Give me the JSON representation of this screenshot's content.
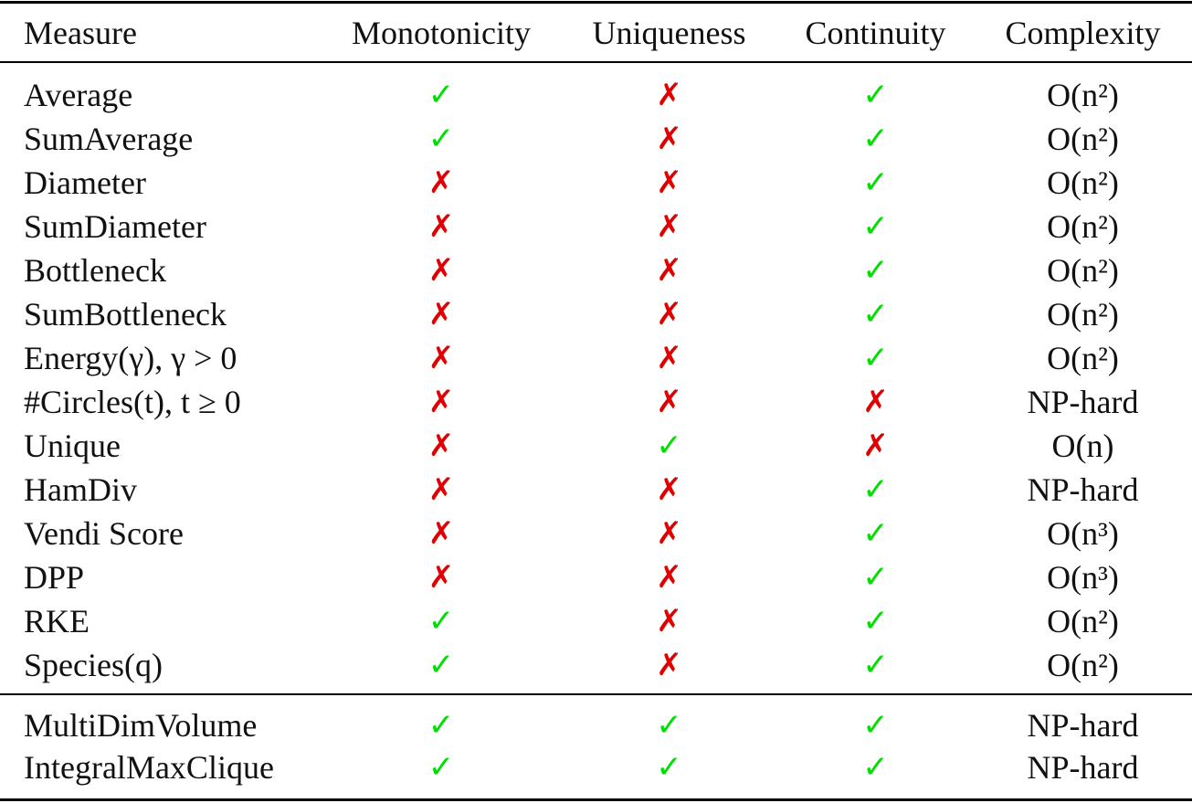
{
  "header": {
    "measure": "Measure",
    "monotonicity": "Monotonicity",
    "uniqueness": "Uniqueness",
    "continuity": "Continuity",
    "complexity": "Complexity"
  },
  "colors": {
    "check": "#00e000",
    "cross": "#e00000"
  },
  "rows": [
    {
      "measure": "Average",
      "monotonicity": "✓",
      "uniqueness": "✗",
      "continuity": "✓",
      "complexity": "O(n²)"
    },
    {
      "measure": "SumAverage",
      "monotonicity": "✓",
      "uniqueness": "✗",
      "continuity": "✓",
      "complexity": "O(n²)"
    },
    {
      "measure": "Diameter",
      "monotonicity": "✗",
      "uniqueness": "✗",
      "continuity": "✓",
      "complexity": "O(n²)"
    },
    {
      "measure": "SumDiameter",
      "monotonicity": "✗",
      "uniqueness": "✗",
      "continuity": "✓",
      "complexity": "O(n²)"
    },
    {
      "measure": "Bottleneck",
      "monotonicity": "✗",
      "uniqueness": "✗",
      "continuity": "✓",
      "complexity": "O(n²)"
    },
    {
      "measure": "SumBottleneck",
      "monotonicity": "✗",
      "uniqueness": "✗",
      "continuity": "✓",
      "complexity": "O(n²)"
    },
    {
      "measure": "Energy(γ), γ > 0",
      "monotonicity": "✗",
      "uniqueness": "✗",
      "continuity": "✓",
      "complexity": "O(n²)"
    },
    {
      "measure": "#Circles(t), t ≥ 0",
      "monotonicity": "✗",
      "uniqueness": "✗",
      "continuity": "✗",
      "complexity": "NP-hard"
    },
    {
      "measure": "Unique",
      "monotonicity": "✗",
      "uniqueness": "✓",
      "continuity": "✗",
      "complexity": "O(n)"
    },
    {
      "measure": "HamDiv",
      "monotonicity": "✗",
      "uniqueness": "✗",
      "continuity": "✓",
      "complexity": "NP-hard"
    },
    {
      "measure": "Vendi Score",
      "monotonicity": "✗",
      "uniqueness": "✗",
      "continuity": "✓",
      "complexity": "O(n³)"
    },
    {
      "measure": "DPP",
      "monotonicity": "✗",
      "uniqueness": "✗",
      "continuity": "✓",
      "complexity": "O(n³)"
    },
    {
      "measure": "RKE",
      "monotonicity": "✓",
      "uniqueness": "✗",
      "continuity": "✓",
      "complexity": "O(n²)"
    },
    {
      "measure": "Species(q)",
      "monotonicity": "✓",
      "uniqueness": "✗",
      "continuity": "✓",
      "complexity": "O(n²)"
    },
    {
      "measure": "MultiDimVolume",
      "monotonicity": "✓",
      "uniqueness": "✓",
      "continuity": "✓",
      "complexity": "NP-hard"
    },
    {
      "measure": "IntegralMaxClique",
      "monotonicity": "✓",
      "uniqueness": "✓",
      "continuity": "✓",
      "complexity": "NP-hard"
    }
  ]
}
